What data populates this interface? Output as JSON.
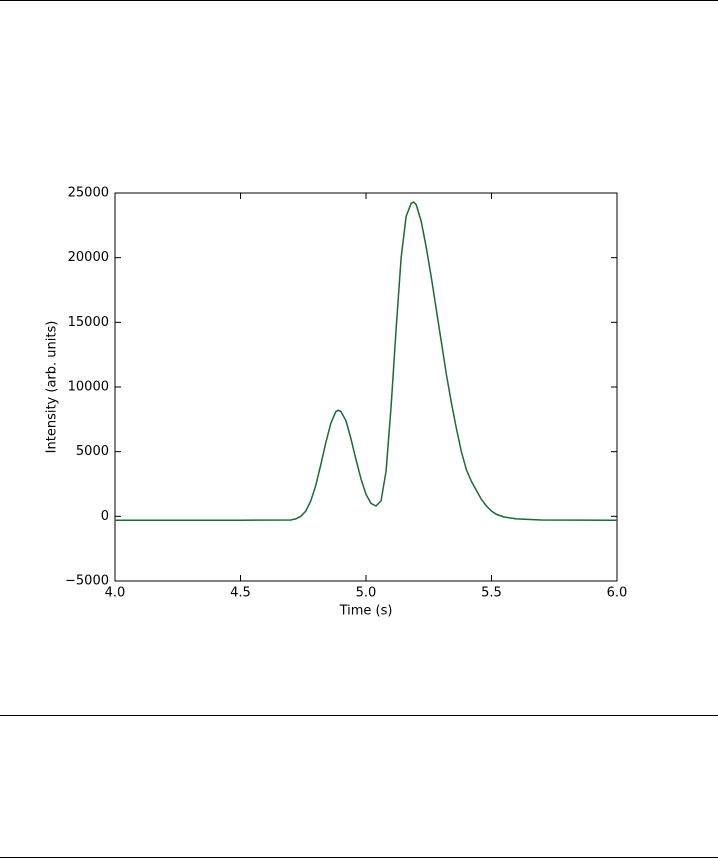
{
  "chart_data": {
    "type": "line",
    "xlabel": "Time (s)",
    "ylabel": "Intensity (arb. units)",
    "x": [
      4.0,
      4.5,
      4.7,
      4.72,
      4.74,
      4.76,
      4.78,
      4.8,
      4.82,
      4.84,
      4.86,
      4.88,
      4.89,
      4.9,
      4.92,
      4.94,
      4.96,
      4.98,
      5.0,
      5.02,
      5.04,
      5.06,
      5.08,
      5.1,
      5.12,
      5.14,
      5.16,
      5.18,
      5.19,
      5.2,
      5.22,
      5.24,
      5.26,
      5.28,
      5.3,
      5.32,
      5.34,
      5.36,
      5.38,
      5.4,
      5.42,
      5.44,
      5.46,
      5.48,
      5.5,
      5.52,
      5.55,
      5.6,
      5.7,
      6.0
    ],
    "series": [
      {
        "color": "#1b6b35",
        "values": [
          -300,
          -300,
          -280,
          -200,
          0,
          400,
          1200,
          2400,
          4000,
          5700,
          7200,
          8100,
          8200,
          8100,
          7400,
          6000,
          4400,
          2900,
          1700,
          1000,
          800,
          1200,
          3500,
          8500,
          14500,
          20000,
          23200,
          24200,
          24300,
          24100,
          22800,
          20800,
          18500,
          16000,
          13500,
          11000,
          8800,
          6800,
          5000,
          3600,
          2700,
          2000,
          1300,
          800,
          400,
          150,
          -50,
          -200,
          -280,
          -300
        ]
      }
    ],
    "xlim": [
      4.0,
      6.0
    ],
    "xticks": [
      {
        "value": 4,
        "label": "4.0"
      },
      {
        "value": 4.5,
        "label": "4.5"
      },
      {
        "value": 5,
        "label": "5.0"
      },
      {
        "value": 5.5,
        "label": "5.5"
      },
      {
        "value": 6,
        "label": "6.0"
      }
    ],
    "ylim": [
      -5000,
      25000
    ],
    "yticks": [
      {
        "value": -5000,
        "label": "−5000"
      },
      0,
      5000,
      10000,
      15000,
      20000,
      25000
    ]
  }
}
